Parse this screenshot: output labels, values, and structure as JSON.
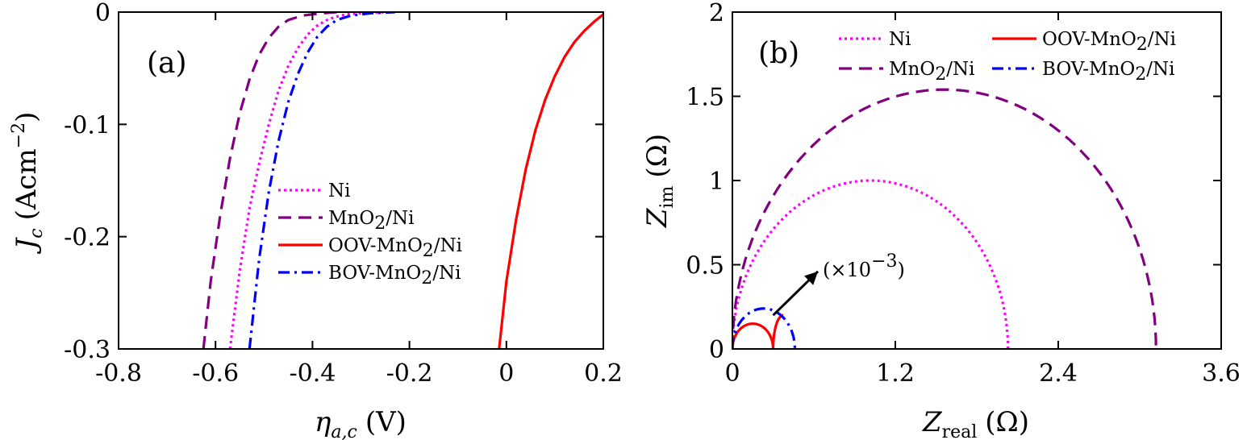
{
  "colors": {
    "ni": "#ff00ff",
    "mno2": "#800080",
    "oov": "#ff0000",
    "bov": "#0000ff",
    "axis": "#000000"
  },
  "chart_data": [
    {
      "type": "line",
      "panel_label": "(a)",
      "xlabel": {
        "main": "η",
        "sub": "a,c",
        "unit": "(V)"
      },
      "ylabel": {
        "main": "J",
        "sub": "c",
        "unit_prefix": "(Acm",
        "unit_exp": "−2",
        "unit_suffix": ")"
      },
      "xlim": [
        -0.8,
        0.2
      ],
      "ylim": [
        -0.3,
        0
      ],
      "xticks": [
        -0.8,
        -0.6,
        -0.4,
        -0.2,
        0,
        0.2
      ],
      "xtick_labels": [
        "-0.8",
        "-0.6",
        "-0.4",
        "-0.2",
        "0",
        "0.2"
      ],
      "yticks": [
        0,
        -0.1,
        -0.2,
        -0.3
      ],
      "ytick_labels": [
        "0",
        "-0.1",
        "-0.2",
        "-0.3"
      ],
      "legend_position": "center-left",
      "series": [
        {
          "name": "Ni",
          "name_parts": [
            "Ni"
          ],
          "style": "dotted",
          "color_key": "ni",
          "points": [
            [
              -0.57,
              -0.3
            ],
            [
              -0.55,
              -0.23
            ],
            [
              -0.53,
              -0.175
            ],
            [
              -0.51,
              -0.135
            ],
            [
              -0.49,
              -0.1
            ],
            [
              -0.47,
              -0.07
            ],
            [
              -0.45,
              -0.048
            ],
            [
              -0.43,
              -0.032
            ],
            [
              -0.41,
              -0.02
            ],
            [
              -0.39,
              -0.012
            ],
            [
              -0.37,
              -0.007
            ],
            [
              -0.35,
              -0.004
            ],
            [
              -0.33,
              -0.002
            ],
            [
              -0.3,
              -0.001
            ],
            [
              -0.25,
              0.0
            ]
          ]
        },
        {
          "name": "MnO2/Ni",
          "name_parts": [
            "MnO",
            "2",
            "/Ni"
          ],
          "style": "dashed",
          "color_key": "mno2",
          "points": [
            [
              -0.625,
              -0.3
            ],
            [
              -0.61,
              -0.24
            ],
            [
              -0.59,
              -0.18
            ],
            [
              -0.57,
              -0.13
            ],
            [
              -0.55,
              -0.09
            ],
            [
              -0.53,
              -0.06
            ],
            [
              -0.51,
              -0.038
            ],
            [
              -0.49,
              -0.023
            ],
            [
              -0.47,
              -0.013
            ],
            [
              -0.45,
              -0.007
            ],
            [
              -0.42,
              -0.003
            ],
            [
              -0.38,
              -0.001
            ],
            [
              -0.35,
              0.0
            ]
          ]
        },
        {
          "name": "OOV-MnO2/Ni",
          "name_parts": [
            "OOV-MnO",
            "2",
            "/Ni"
          ],
          "style": "solid",
          "color_key": "oov",
          "points": [
            [
              -0.015,
              -0.3
            ],
            [
              0.0,
              -0.24
            ],
            [
              0.02,
              -0.185
            ],
            [
              0.04,
              -0.14
            ],
            [
              0.06,
              -0.105
            ],
            [
              0.08,
              -0.078
            ],
            [
              0.1,
              -0.057
            ],
            [
              0.12,
              -0.04
            ],
            [
              0.14,
              -0.027
            ],
            [
              0.16,
              -0.017
            ],
            [
              0.18,
              -0.009
            ],
            [
              0.2,
              -0.002
            ]
          ]
        },
        {
          "name": "BOV-MnO2/Ni",
          "name_parts": [
            "BOV-MnO",
            "2",
            "/Ni"
          ],
          "style": "dashdot",
          "color_key": "bov",
          "points": [
            [
              -0.53,
              -0.3
            ],
            [
              -0.51,
              -0.22
            ],
            [
              -0.49,
              -0.16
            ],
            [
              -0.47,
              -0.115
            ],
            [
              -0.45,
              -0.08
            ],
            [
              -0.43,
              -0.055
            ],
            [
              -0.41,
              -0.036
            ],
            [
              -0.39,
              -0.022
            ],
            [
              -0.37,
              -0.013
            ],
            [
              -0.35,
              -0.007
            ],
            [
              -0.32,
              -0.003
            ],
            [
              -0.28,
              -0.001
            ],
            [
              -0.23,
              0.0
            ]
          ]
        }
      ]
    },
    {
      "type": "line",
      "panel_label": "(b)",
      "xlabel": {
        "main": "Z",
        "sub": "real",
        "unit": "(Ω)"
      },
      "ylabel": {
        "main": "Z",
        "sub": "im",
        "unit": "(Ω)"
      },
      "xlim": [
        0,
        3.6
      ],
      "ylim": [
        0,
        2
      ],
      "xticks": [
        0,
        1.2,
        2.4,
        3.6
      ],
      "xtick_labels": [
        "0",
        "1.2",
        "2.4",
        "3.6"
      ],
      "yticks": [
        0,
        0.5,
        1,
        1.5,
        2
      ],
      "ytick_labels": [
        "0",
        "0.5",
        "1",
        "1.5",
        "2"
      ],
      "legend_position": "top",
      "annotation": {
        "prefix": "(×10",
        "exp": "−3",
        "suffix": ")",
        "arrow_from": [
          0.3,
          0.2
        ],
        "arrow_to": [
          0.63,
          0.46
        ]
      },
      "series": [
        {
          "name": "Ni",
          "name_parts": [
            "Ni"
          ],
          "style": "dotted",
          "color_key": "ni",
          "arc": {
            "x0": 0.0,
            "x1": 2.03,
            "height": 1.0
          }
        },
        {
          "name": "MnO2/Ni",
          "name_parts": [
            "MnO",
            "2",
            "/Ni"
          ],
          "style": "dashed",
          "color_key": "mno2",
          "arc": {
            "x0": 0.0,
            "x1": 3.12,
            "height": 1.54
          }
        },
        {
          "name": "OOV-MnO2/Ni",
          "name_parts": [
            "OOV-MnO",
            "2",
            "/Ni"
          ],
          "style": "solid",
          "color_key": "oov",
          "arc": {
            "x0": 0.0,
            "x1": 0.3,
            "height": 0.15
          },
          "arc2": {
            "x0": 0.3,
            "x1": 0.45,
            "height": 0.2,
            "partial": 0.5
          }
        },
        {
          "name": "BOV-MnO2/Ni",
          "name_parts": [
            "BOV-MnO",
            "2",
            "/Ni"
          ],
          "style": "dashdot",
          "color_key": "bov",
          "arc": {
            "x0": 0.0,
            "x1": 0.46,
            "height": 0.24
          }
        }
      ]
    }
  ]
}
